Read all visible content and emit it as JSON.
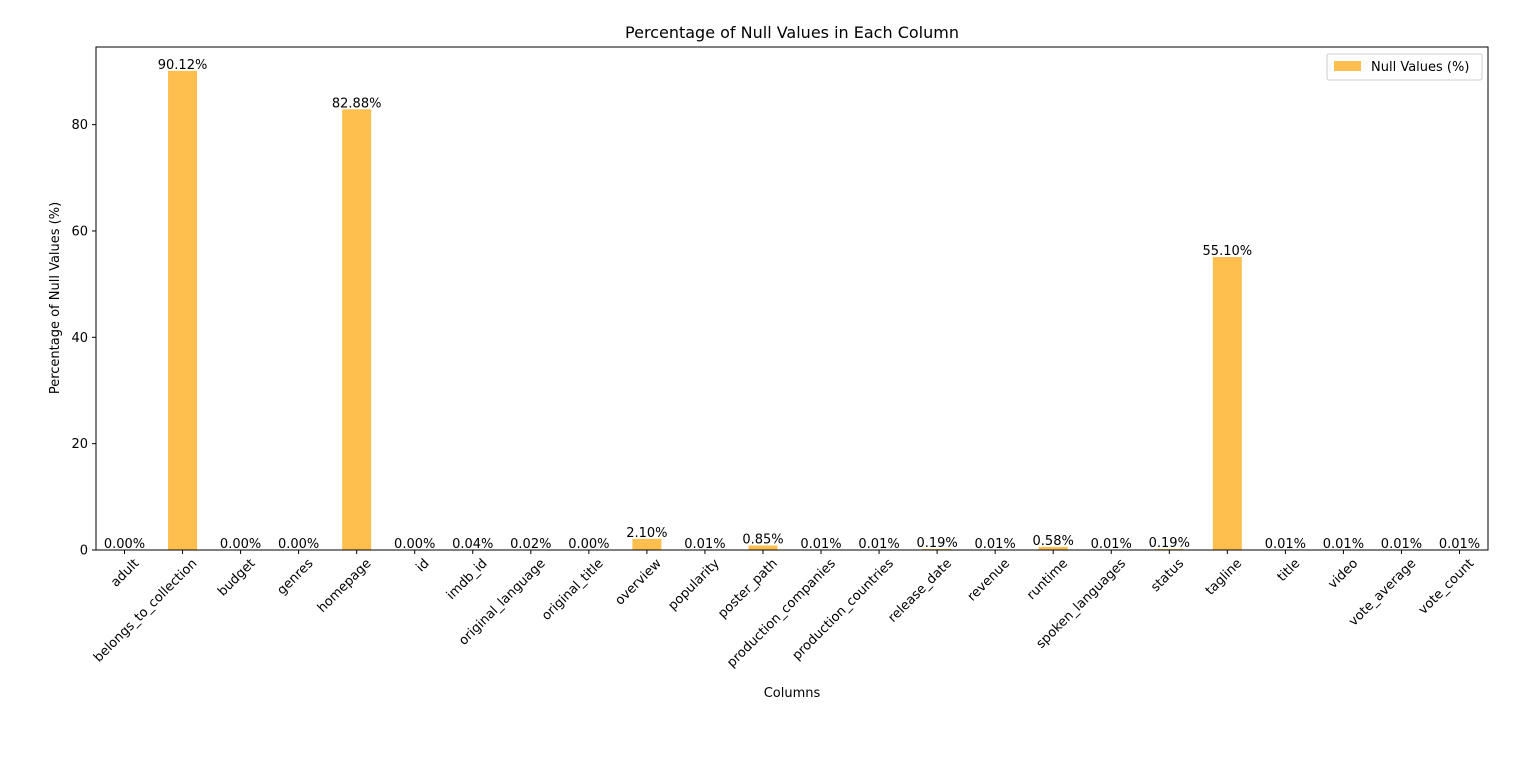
{
  "chart_data": {
    "type": "bar",
    "title": "Percentage of Null Values in Each Column",
    "xlabel": "Columns",
    "ylabel": "Percentage of Null Values (%)",
    "ylim": [
      0,
      94.6
    ],
    "yticks": [
      0,
      20,
      40,
      60,
      80
    ],
    "legend_position": "top-right",
    "grid": false,
    "bar_color": "#ffbf4f",
    "categories": [
      "adult",
      "belongs_to_collection",
      "budget",
      "genres",
      "homepage",
      "id",
      "imdb_id",
      "original_language",
      "original_title",
      "overview",
      "popularity",
      "poster_path",
      "production_companies",
      "production_countries",
      "release_date",
      "revenue",
      "runtime",
      "spoken_languages",
      "status",
      "tagline",
      "title",
      "video",
      "vote_average",
      "vote_count"
    ],
    "series": [
      {
        "name": "Null Values (%)",
        "values": [
          0.0,
          90.12,
          0.0,
          0.0,
          82.88,
          0.0,
          0.04,
          0.02,
          0.0,
          2.1,
          0.01,
          0.85,
          0.01,
          0.01,
          0.19,
          0.01,
          0.58,
          0.01,
          0.19,
          55.1,
          0.01,
          0.01,
          0.01,
          0.01
        ],
        "labels": [
          "0.00%",
          "90.12%",
          "0.00%",
          "0.00%",
          "82.88%",
          "0.00%",
          "0.04%",
          "0.02%",
          "0.00%",
          "2.10%",
          "0.01%",
          "0.85%",
          "0.01%",
          "0.01%",
          "0.19%",
          "0.01%",
          "0.58%",
          "0.01%",
          "0.19%",
          "55.10%",
          "0.01%",
          "0.01%",
          "0.01%",
          "0.01%"
        ]
      }
    ]
  }
}
